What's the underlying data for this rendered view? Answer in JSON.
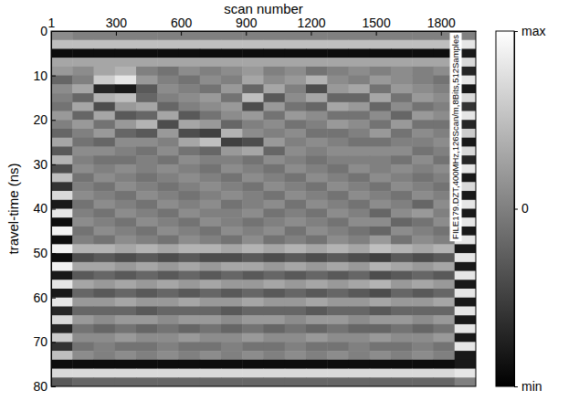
{
  "chart_data": {
    "type": "heatmap",
    "x_label": "scan number",
    "y_label": "travel-time (ns)",
    "annotations": [
      "FILE179.DZT,400MHz,126Scan/m,8Bits,512Samples"
    ],
    "xlim": [
      1,
      1961
    ],
    "xticks": [
      1,
      300,
      600,
      900,
      1200,
      1500,
      1800
    ],
    "ylim": [
      0,
      80
    ],
    "yticks": [
      0,
      10,
      20,
      30,
      40,
      50,
      60,
      70,
      80
    ],
    "x_edges": [
      1,
      99,
      197,
      295,
      393,
      491,
      589,
      687,
      785,
      883,
      981,
      1079,
      1177,
      1275,
      1373,
      1471,
      1569,
      1667,
      1765,
      1863,
      1961
    ],
    "y_edges": [
      0,
      2,
      4,
      6,
      8,
      10,
      12,
      14,
      16,
      18,
      20,
      22,
      24,
      26,
      28,
      30,
      32,
      34,
      36,
      38,
      40,
      42,
      44,
      46,
      48,
      50,
      52,
      54,
      56,
      58,
      60,
      62,
      64,
      66,
      68,
      70,
      72,
      74,
      76,
      78,
      80
    ],
    "colorbar_range": [
      -1,
      1
    ],
    "colorbar_ticks": [
      {
        "value": -1,
        "label": "min"
      },
      0,
      {
        "value": 1,
        "label": "max"
      }
    ],
    "cells": [
      [
        0.1,
        0.0,
        0.0,
        0.0,
        0.0,
        0.0,
        0.0,
        0.0,
        0.0,
        0.0,
        0.0,
        0.0,
        0.0,
        0.0,
        0.0,
        0.0,
        0.0,
        0.0,
        0.0,
        0.0
      ],
      [
        0.5,
        0.5,
        0.5,
        0.5,
        0.5,
        0.5,
        0.5,
        0.5,
        0.5,
        0.5,
        0.5,
        0.5,
        0.5,
        0.5,
        0.5,
        0.5,
        0.5,
        0.5,
        0.5,
        0.8
      ],
      [
        -0.9,
        -0.9,
        -0.9,
        -0.9,
        -0.9,
        -0.9,
        -0.9,
        -0.9,
        -0.9,
        -0.9,
        -0.9,
        -0.9,
        -0.9,
        -0.9,
        -0.9,
        -0.9,
        -0.9,
        -0.9,
        -0.9,
        -0.8
      ],
      [
        0.3,
        0.3,
        0.3,
        0.3,
        0.3,
        0.3,
        0.3,
        0.3,
        0.3,
        0.3,
        0.3,
        0.3,
        0.3,
        0.3,
        0.3,
        0.3,
        0.3,
        0.3,
        0.3,
        0.7
      ],
      [
        0.2,
        0.1,
        0.3,
        0.4,
        0.0,
        -0.1,
        0.1,
        0.0,
        0.1,
        0.2,
        0.0,
        0.1,
        -0.1,
        0.0,
        0.1,
        0.0,
        0.1,
        0.0,
        0.1,
        -0.7
      ],
      [
        -0.2,
        0.0,
        0.6,
        0.8,
        0.2,
        0.0,
        -0.1,
        0.1,
        0.0,
        0.3,
        0.1,
        0.2,
        0.4,
        0.1,
        0.0,
        0.2,
        0.1,
        0.0,
        -0.1,
        0.8
      ],
      [
        0.1,
        0.3,
        -0.7,
        -0.8,
        -0.3,
        0.1,
        0.0,
        -0.1,
        0.2,
        -0.2,
        0.3,
        0.0,
        -0.4,
        0.2,
        0.3,
        -0.1,
        0.2,
        0.1,
        0.0,
        -0.8
      ],
      [
        0.0,
        -0.2,
        0.4,
        0.5,
        -0.2,
        0.0,
        0.1,
        0.2,
        -0.1,
        0.5,
        -0.3,
        0.1,
        0.3,
        -0.2,
        -0.2,
        0.3,
        -0.1,
        0.2,
        0.1,
        0.7
      ],
      [
        -0.1,
        0.3,
        -0.4,
        0.2,
        0.3,
        -0.2,
        0.0,
        0.1,
        0.2,
        -0.4,
        0.2,
        -0.1,
        -0.2,
        0.3,
        0.2,
        -0.2,
        0.1,
        -0.1,
        0.0,
        -0.6
      ],
      [
        0.2,
        -0.2,
        0.3,
        -0.3,
        -0.2,
        0.3,
        -0.3,
        -0.1,
        0.1,
        0.2,
        -0.1,
        0.2,
        0.1,
        -0.1,
        -0.1,
        0.1,
        -0.2,
        0.2,
        0.1,
        0.8
      ],
      [
        0.0,
        0.2,
        -0.1,
        0.2,
        0.4,
        -0.4,
        0.3,
        0.2,
        -0.2,
        0.0,
        0.1,
        -0.1,
        0.0,
        0.2,
        0.1,
        -0.1,
        0.2,
        -0.1,
        -0.1,
        -0.7
      ],
      [
        -0.2,
        0.0,
        0.2,
        -0.2,
        -0.3,
        0.2,
        -0.4,
        -0.5,
        0.4,
        0.1,
        0.0,
        0.1,
        -0.1,
        -0.1,
        0.0,
        0.2,
        -0.1,
        0.1,
        0.0,
        0.6
      ],
      [
        0.3,
        -0.1,
        -0.2,
        0.1,
        0.1,
        0.0,
        0.3,
        0.5,
        -0.5,
        -0.4,
        0.2,
        0.0,
        0.1,
        0.0,
        -0.1,
        -0.1,
        0.0,
        0.0,
        0.1,
        -0.8
      ],
      [
        -0.3,
        0.1,
        0.1,
        0.0,
        -0.1,
        0.1,
        -0.1,
        -0.2,
        0.2,
        0.3,
        -0.2,
        0.1,
        0.0,
        0.1,
        0.1,
        0.1,
        0.1,
        -0.1,
        0.0,
        0.7
      ],
      [
        0.4,
        0.0,
        -0.1,
        -0.1,
        0.0,
        -0.1,
        0.1,
        0.0,
        0.0,
        -0.1,
        0.1,
        0.0,
        -0.1,
        0.0,
        0.0,
        0.0,
        -0.1,
        0.1,
        -0.1,
        -0.7
      ],
      [
        -0.4,
        0.1,
        0.0,
        0.1,
        0.0,
        0.1,
        0.0,
        -0.1,
        0.1,
        0.0,
        -0.1,
        0.1,
        0.0,
        -0.1,
        0.1,
        0.0,
        0.1,
        0.0,
        0.1,
        0.8
      ],
      [
        0.5,
        -0.1,
        0.1,
        0.0,
        -0.1,
        0.0,
        0.1,
        0.0,
        -0.1,
        0.1,
        0.0,
        -0.1,
        0.1,
        0.0,
        -0.1,
        0.1,
        0.0,
        -0.1,
        0.0,
        -0.8
      ],
      [
        -0.6,
        0.0,
        -0.1,
        0.1,
        0.0,
        -0.1,
        0.0,
        0.1,
        0.0,
        -0.1,
        0.1,
        0.0,
        -0.1,
        0.1,
        0.0,
        -0.1,
        0.1,
        0.0,
        -0.1,
        0.7
      ],
      [
        0.7,
        0.1,
        0.0,
        -0.1,
        0.1,
        0.0,
        -0.1,
        0.0,
        0.1,
        0.0,
        -0.1,
        0.1,
        0.0,
        -0.1,
        0.1,
        0.0,
        -0.1,
        0.1,
        0.0,
        -0.8
      ],
      [
        -0.8,
        -0.1,
        0.1,
        0.0,
        -0.1,
        0.1,
        0.0,
        0.1,
        -0.1,
        0.0,
        0.1,
        -0.1,
        0.1,
        0.0,
        -0.1,
        0.1,
        0.0,
        -0.2,
        0.1,
        0.8
      ],
      [
        0.8,
        0.0,
        -0.1,
        0.1,
        0.0,
        -0.1,
        0.1,
        0.0,
        0.0,
        0.1,
        -0.1,
        0.0,
        -0.1,
        0.1,
        0.0,
        -0.2,
        0.1,
        0.2,
        0.0,
        -0.8
      ],
      [
        -0.9,
        0.1,
        0.0,
        -0.1,
        0.1,
        0.0,
        -0.1,
        0.1,
        0.0,
        -0.1,
        0.0,
        0.1,
        0.0,
        -0.1,
        0.1,
        0.1,
        -0.2,
        -0.1,
        0.1,
        0.8
      ],
      [
        0.9,
        -0.1,
        0.1,
        0.0,
        -0.1,
        0.1,
        0.0,
        -0.1,
        0.1,
        0.0,
        0.1,
        -0.1,
        0.1,
        0.0,
        -0.1,
        -0.2,
        0.1,
        0.0,
        -0.1,
        -0.8
      ],
      [
        -0.9,
        0.0,
        -0.1,
        0.1,
        0.0,
        -0.1,
        0.1,
        0.0,
        -0.1,
        0.1,
        -0.1,
        0.0,
        -0.1,
        0.1,
        0.0,
        0.2,
        -0.1,
        0.1,
        0.0,
        0.8
      ],
      [
        0.9,
        0.4,
        0.4,
        0.3,
        0.4,
        0.3,
        0.4,
        0.4,
        0.3,
        0.4,
        0.3,
        0.4,
        0.3,
        0.4,
        0.3,
        0.5,
        0.4,
        0.3,
        0.4,
        -0.8
      ],
      [
        -0.9,
        -0.4,
        -0.3,
        -0.4,
        -0.3,
        -0.4,
        -0.3,
        -0.4,
        -0.4,
        -0.3,
        -0.4,
        -0.3,
        -0.4,
        -0.3,
        -0.4,
        -0.5,
        -0.3,
        -0.4,
        -0.3,
        0.8
      ],
      [
        0.9,
        0.3,
        0.3,
        0.2,
        0.3,
        0.2,
        0.3,
        0.2,
        0.3,
        0.3,
        0.2,
        0.3,
        0.2,
        0.3,
        0.2,
        0.4,
        0.3,
        0.2,
        0.3,
        -0.8
      ],
      [
        -0.8,
        -0.3,
        -0.2,
        -0.3,
        -0.2,
        -0.3,
        -0.2,
        -0.3,
        -0.2,
        -0.3,
        -0.2,
        -0.3,
        -0.2,
        -0.3,
        -0.2,
        -0.4,
        -0.3,
        -0.2,
        -0.3,
        0.8
      ],
      [
        0.8,
        0.3,
        0.2,
        0.3,
        0.2,
        0.3,
        0.2,
        0.3,
        0.2,
        0.2,
        0.3,
        0.2,
        0.3,
        0.2,
        0.3,
        0.4,
        0.2,
        0.3,
        0.2,
        -0.8
      ],
      [
        -0.8,
        -0.2,
        -0.3,
        -0.2,
        -0.3,
        -0.2,
        -0.3,
        -0.2,
        -0.3,
        -0.2,
        -0.3,
        -0.2,
        -0.3,
        -0.2,
        -0.3,
        -0.4,
        -0.2,
        -0.3,
        -0.2,
        0.8
      ],
      [
        0.8,
        0.2,
        0.2,
        0.3,
        0.2,
        0.2,
        0.3,
        0.2,
        0.2,
        0.3,
        0.2,
        0.2,
        0.3,
        0.2,
        0.2,
        0.3,
        0.2,
        0.2,
        0.3,
        -0.8
      ],
      [
        -0.7,
        -0.2,
        -0.2,
        -0.2,
        -0.3,
        -0.2,
        -0.2,
        -0.2,
        -0.3,
        -0.2,
        -0.2,
        -0.2,
        -0.3,
        -0.2,
        -0.2,
        -0.3,
        -0.2,
        -0.2,
        -0.2,
        0.8
      ],
      [
        0.7,
        0.2,
        0.1,
        0.2,
        0.2,
        0.1,
        0.2,
        0.2,
        0.1,
        0.2,
        0.2,
        0.1,
        0.2,
        0.2,
        0.1,
        0.2,
        0.2,
        0.1,
        0.2,
        -0.8
      ],
      [
        -0.7,
        -0.1,
        -0.2,
        -0.1,
        -0.2,
        -0.1,
        -0.2,
        -0.1,
        -0.2,
        -0.1,
        -0.2,
        -0.1,
        -0.2,
        -0.1,
        -0.2,
        -0.2,
        -0.1,
        -0.2,
        -0.1,
        0.8
      ],
      [
        0.6,
        0.1,
        0.1,
        0.2,
        0.1,
        0.1,
        0.2,
        0.1,
        0.1,
        0.2,
        0.1,
        0.1,
        0.2,
        0.1,
        0.1,
        0.2,
        0.1,
        0.1,
        0.2,
        -0.8
      ],
      [
        -0.6,
        -0.1,
        0.0,
        -0.1,
        -0.1,
        0.0,
        -0.1,
        -0.1,
        0.0,
        -0.1,
        -0.1,
        0.0,
        -0.1,
        -0.1,
        0.0,
        -0.1,
        -0.1,
        0.0,
        -0.1,
        0.8
      ],
      [
        0.5,
        0.1,
        0.0,
        0.1,
        0.0,
        0.1,
        0.0,
        0.1,
        0.0,
        0.1,
        0.0,
        0.1,
        0.0,
        0.1,
        0.0,
        0.1,
        0.0,
        0.1,
        0.0,
        -0.8
      ],
      [
        -0.9,
        -0.9,
        -0.9,
        -0.9,
        -0.9,
        -0.9,
        -0.9,
        -0.9,
        -0.9,
        -0.9,
        -0.9,
        -0.9,
        -0.9,
        -0.9,
        -0.9,
        -0.9,
        -0.9,
        -0.9,
        -0.9,
        -0.8
      ],
      [
        0.7,
        0.7,
        0.7,
        0.7,
        0.7,
        0.7,
        0.7,
        0.7,
        0.7,
        0.7,
        0.7,
        0.7,
        0.7,
        0.7,
        0.7,
        0.7,
        0.7,
        0.7,
        0.7,
        0.8
      ],
      [
        -0.3,
        -0.2,
        -0.2,
        -0.2,
        -0.2,
        -0.2,
        -0.2,
        -0.2,
        -0.2,
        -0.2,
        -0.2,
        -0.2,
        -0.2,
        -0.2,
        -0.2,
        -0.2,
        -0.2,
        -0.2,
        -0.2,
        0.0
      ]
    ]
  }
}
